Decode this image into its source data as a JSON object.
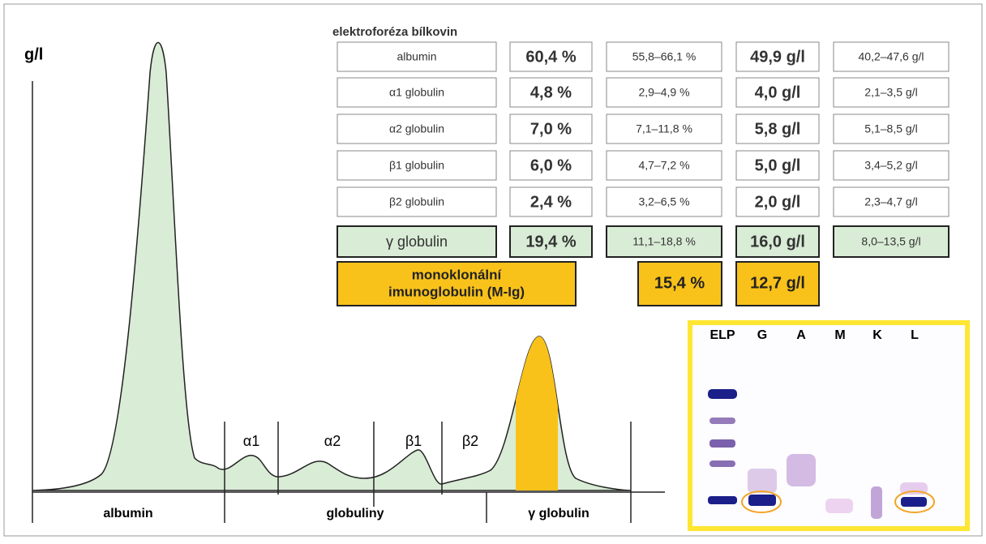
{
  "header": {
    "title": "elektroforéza bílkovin",
    "axis_label": "g/l"
  },
  "table": {
    "rows": [
      [
        "albumin",
        "60,4 %",
        "55,8–66,1 %",
        "49,9 g/l",
        "40,2–47,6 g/l"
      ],
      [
        "α1 globulin",
        "4,8 %",
        "2,9–4,9 %",
        "4,0 g/l",
        "2,1–3,5 g/l"
      ],
      [
        "α2 globulin",
        "7,0 %",
        "7,1–11,8 %",
        "5,8 g/l",
        "5,1–8,5 g/l"
      ],
      [
        "β1 globulin",
        "6,0 %",
        "4,7–7,2 %",
        "5,0 g/l",
        "3,4–5,2 g/l"
      ],
      [
        "β2 globulin",
        "2,4 %",
        "3,2–6,5 %",
        "2,0 g/l",
        "2,3–4,7 g/l"
      ],
      [
        "γ globulin",
        "19,4 %",
        "11,1–18,8 %",
        "16,0 g/l",
        "8,0–13,5 g/l"
      ]
    ],
    "mono": {
      "label": [
        "monoklonální",
        "imunoglobulin (M-Ig)"
      ],
      "percent": "15,4 %",
      "gl": "12,7 g/l"
    }
  },
  "fractions": [
    "α1",
    "α2",
    "β1",
    "β2"
  ],
  "regions": [
    "albumin",
    "globuliny",
    "γ globulin"
  ],
  "gel": {
    "lanes": [
      "ELP",
      "G",
      "A",
      "M",
      "K",
      "L"
    ]
  }
}
